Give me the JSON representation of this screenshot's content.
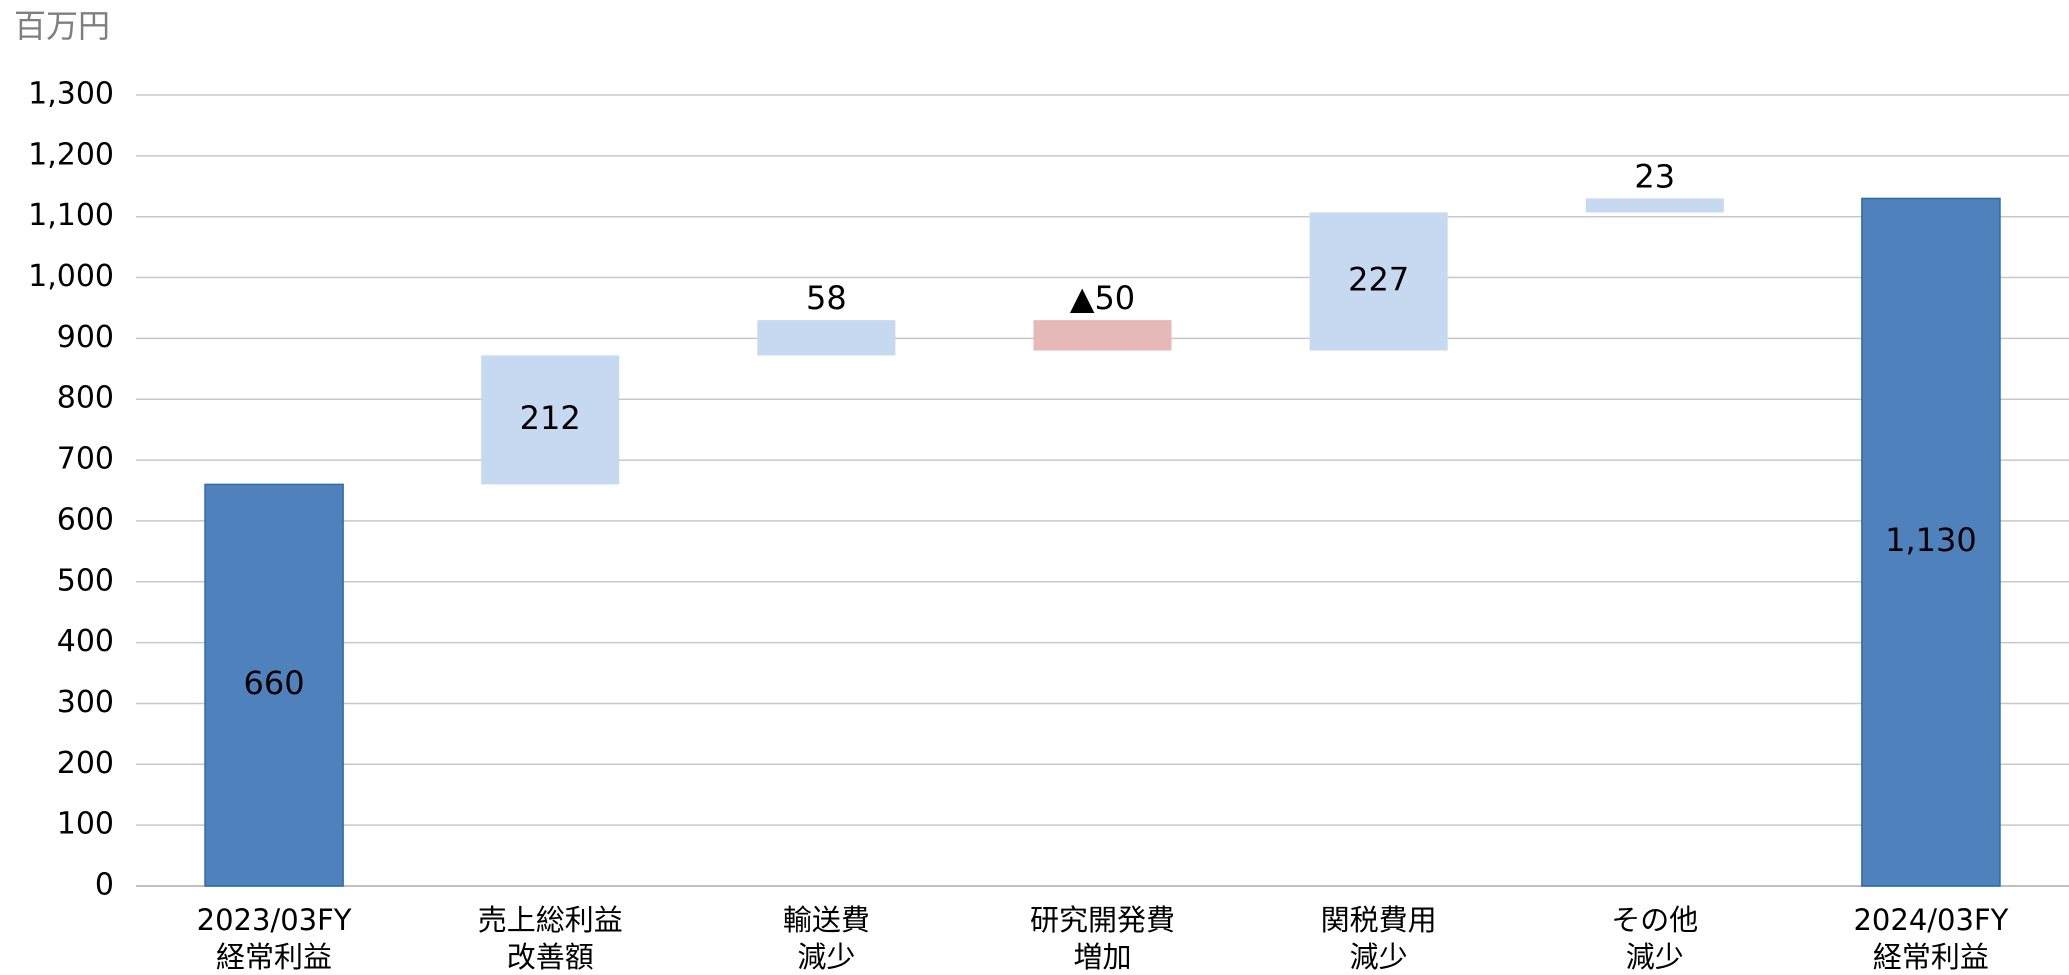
{
  "chart_data": {
    "type": "waterfall",
    "y_label": "百万円",
    "categories": [
      "2023/03FY\n経常利益",
      "売上総利益\n改善額",
      "輸送費\n減少",
      "研究開発費\n増加",
      "関税費用\n減少",
      "その他\n減少",
      "2024/03FY\n経常利益"
    ],
    "values": [
      660,
      212,
      58,
      -50,
      227,
      23,
      1130
    ],
    "value_labels": [
      "660",
      "212",
      "58",
      "▲50",
      "227",
      "23",
      "1,130"
    ],
    "measure": [
      "absolute",
      "relative",
      "relative",
      "relative",
      "relative",
      "relative",
      "absolute"
    ],
    "colors": [
      "#4f81bd",
      "#c6d9f1",
      "#c6d9f1",
      "#e6b9b8",
      "#c6d9f1",
      "#c6d9f1",
      "#4f81bd"
    ],
    "ylim": [
      0,
      1300
    ],
    "yticks": [
      0,
      100,
      200,
      300,
      400,
      500,
      600,
      700,
      800,
      900,
      {
        "value": 1000,
        "label": "1,000"
      },
      {
        "value": 1100,
        "label": "1,100"
      },
      {
        "value": 1200,
        "label": "1,200"
      },
      {
        "value": 1300,
        "label": "1,300"
      }
    ],
    "grid": true
  }
}
